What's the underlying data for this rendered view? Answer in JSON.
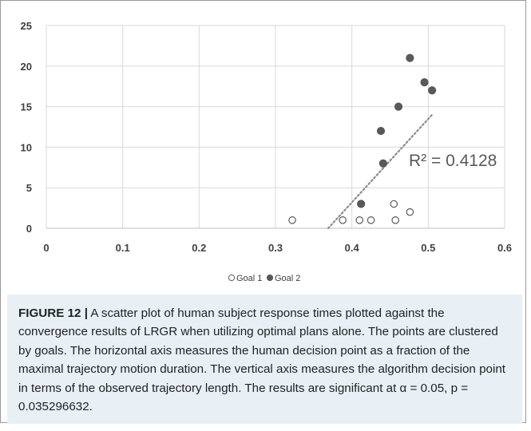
{
  "chart_data": {
    "type": "scatter",
    "xlim": [
      0,
      0.6
    ],
    "ylim": [
      0,
      25
    ],
    "xticks": [
      "0",
      "0.1",
      "0.2",
      "0.3",
      "0.4",
      "0.5",
      "0.6"
    ],
    "yticks": [
      "0",
      "5",
      "10",
      "15",
      "20",
      "25"
    ],
    "grid": "vertical and horizontal",
    "legend_position": "bottom",
    "series": [
      {
        "name": "Goal 1",
        "marker": "open-circle",
        "color": "#595959",
        "points": [
          [
            0.322,
            1
          ],
          [
            0.388,
            1
          ],
          [
            0.41,
            1
          ],
          [
            0.425,
            1
          ],
          [
            0.455,
            3
          ],
          [
            0.457,
            1
          ],
          [
            0.476,
            2
          ]
        ]
      },
      {
        "name": "Goal 2",
        "marker": "filled-circle",
        "color": "#595959",
        "points": [
          [
            0.412,
            3
          ],
          [
            0.438,
            12
          ],
          [
            0.441,
            8
          ],
          [
            0.461,
            15
          ],
          [
            0.476,
            21
          ],
          [
            0.495,
            18
          ],
          [
            0.505,
            17
          ]
        ]
      }
    ],
    "trendline": {
      "style": "dotted",
      "color": "#8c8c8c",
      "from": [
        0.369,
        0
      ],
      "to": [
        0.505,
        14
      ],
      "label": "R² = 0.4128"
    }
  },
  "caption": {
    "label": "FIGURE 12 |",
    "text": " A scatter plot of human subject response times plotted against the convergence results of LRGR when utilizing optimal plans alone. The points are clustered by goals. The horizontal axis measures the human decision point as a fraction of the maximal trajectory motion duration. The vertical axis measures the algorithm decision point in terms of the observed trajectory length. The results are significant at α = 0.05, p = 0.035296632."
  }
}
